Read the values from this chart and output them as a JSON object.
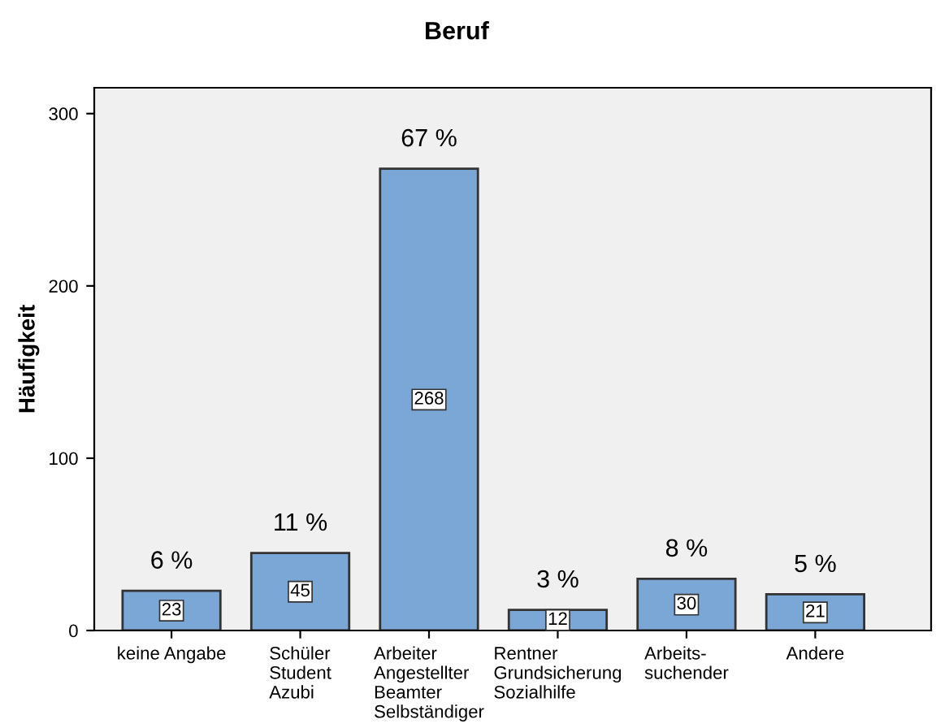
{
  "chart_data": {
    "type": "bar",
    "title": "Beruf",
    "ylabel": "Häufigkeit",
    "categories": [
      "keine Angabe",
      "Schüler\nStudent\nAzubi",
      "Arbeiter\nAngestellter\nBeamter\nSelbständiger",
      "Rentner\nGrundsicherung\nSozialhilfe",
      "Arbeits-\nsuchender",
      "Andere"
    ],
    "values": [
      23,
      45,
      268,
      12,
      30,
      21
    ],
    "color": "#7ba7d7",
    "value_labels": [
      "23",
      "45",
      "268",
      "12",
      "30",
      "21"
    ],
    "annotations": [
      {
        "text": "6 %",
        "x": "keine Angabe",
        "y": 23
      },
      {
        "text": "11 %",
        "x": "Schüler\nStudent\nAzubi",
        "y": 45
      },
      {
        "text": "67 %",
        "x": "Arbeiter\nAngestellter\nBeamter\nSelbständiger",
        "y": 268
      },
      {
        "text": "3 %",
        "x": "Rentner\nGrundsicherung\nSozialhilfe",
        "y": 12
      },
      {
        "text": "8 %",
        "x": "Arbeits-\nsuchender",
        "y": 30
      },
      {
        "text": "5 %",
        "x": "Andere",
        "y": 21
      }
    ],
    "ylim": [
      0,
      315
    ],
    "yticks": [
      0,
      100,
      200,
      300
    ],
    "grid": false,
    "legend": false
  }
}
